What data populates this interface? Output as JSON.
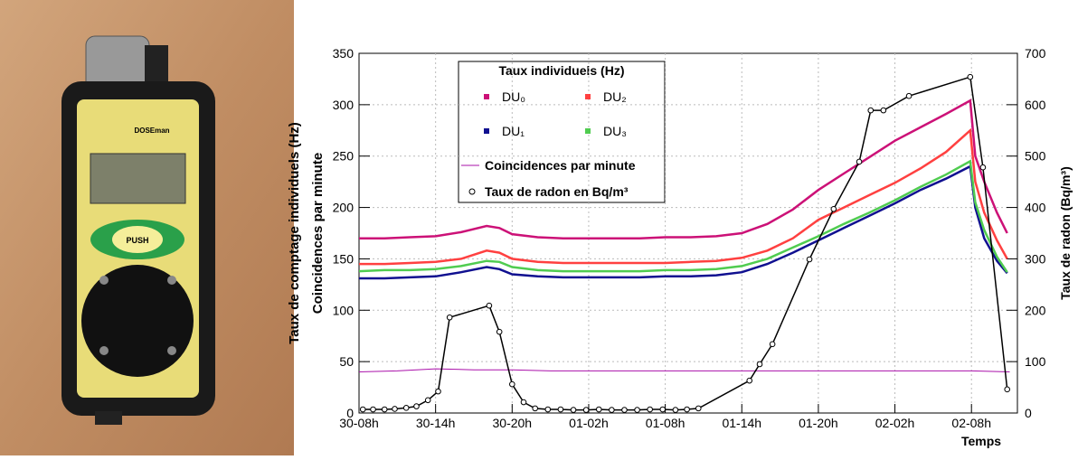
{
  "photo": {
    "brand": "DOSEman",
    "button": "PUSH"
  },
  "chart_data": {
    "type": "line",
    "legend_title": "Taux individuels (Hz)",
    "x_label": "Temps",
    "y_label": [
      "Taux de comptage individuels (Hz)",
      "Coincidences par minute"
    ],
    "y2_label": "Taux de radon (Bq/m³)",
    "xlim": [
      0,
      51.6
    ],
    "ylim": [
      0,
      350
    ],
    "y2lim": [
      0,
      700
    ],
    "xticks": [
      {
        "value": 0,
        "label": "30-08h"
      },
      {
        "value": 6,
        "label": "30-14h"
      },
      {
        "value": 12,
        "label": "30-20h"
      },
      {
        "value": 18,
        "label": "01-02h"
      },
      {
        "value": 24,
        "label": "01-08h"
      },
      {
        "value": 30,
        "label": "01-14h"
      },
      {
        "value": 36,
        "label": "01-20h"
      },
      {
        "value": 42,
        "label": "02-02h"
      },
      {
        "value": 48,
        "label": "02-08h"
      }
    ],
    "yticks": [
      0,
      50,
      100,
      150,
      200,
      250,
      300,
      350
    ],
    "y2ticks": [
      0,
      100,
      200,
      300,
      400,
      500,
      600,
      700
    ],
    "grid": true,
    "series": [
      {
        "name": "DU₀",
        "color": "#cc1177",
        "marker": "square",
        "x": [
          0,
          2,
          4,
          6,
          8,
          10,
          11,
          12,
          14,
          16,
          18,
          20,
          22,
          24,
          26,
          28,
          30,
          32,
          34,
          36,
          38,
          40,
          42,
          44,
          46,
          47.9,
          48.3,
          49,
          50,
          50.8
        ],
        "values": [
          170,
          170,
          171,
          172,
          176,
          182,
          180,
          174,
          171,
          170,
          170,
          170,
          170,
          171,
          171,
          172,
          175,
          184,
          198,
          217,
          233,
          249,
          265,
          278,
          291,
          304,
          250,
          225,
          195,
          175
        ]
      },
      {
        "name": "DU₁",
        "color": "#101090",
        "marker": "square",
        "x": [
          0,
          2,
          4,
          6,
          8,
          10,
          11,
          12,
          14,
          16,
          18,
          20,
          22,
          24,
          26,
          28,
          30,
          32,
          34,
          36,
          38,
          40,
          42,
          44,
          46,
          47.9,
          48.3,
          49,
          50,
          50.8
        ],
        "values": [
          131,
          131,
          132,
          133,
          137,
          142,
          140,
          135,
          133,
          132,
          132,
          132,
          132,
          133,
          133,
          134,
          137,
          145,
          156,
          168,
          180,
          192,
          204,
          217,
          228,
          240,
          200,
          170,
          148,
          136
        ]
      },
      {
        "name": "DU₂",
        "color": "#ff4040",
        "marker": "square",
        "x": [
          0,
          2,
          4,
          6,
          8,
          10,
          11,
          12,
          14,
          16,
          18,
          20,
          22,
          24,
          26,
          28,
          30,
          32,
          34,
          36,
          38,
          40,
          42,
          44,
          46,
          47.9,
          48.3,
          49,
          50,
          50.8
        ],
        "values": [
          145,
          145,
          146,
          147,
          150,
          158,
          156,
          150,
          147,
          146,
          146,
          146,
          146,
          146,
          147,
          148,
          151,
          158,
          170,
          188,
          200,
          212,
          224,
          238,
          254,
          275,
          225,
          195,
          168,
          150
        ]
      },
      {
        "name": "DU₃",
        "color": "#50cc50",
        "marker": "square",
        "x": [
          0,
          2,
          4,
          6,
          8,
          10,
          11,
          12,
          14,
          16,
          18,
          20,
          22,
          24,
          26,
          28,
          30,
          32,
          34,
          36,
          38,
          40,
          42,
          44,
          46,
          47.9,
          48.3,
          49,
          50,
          50.8
        ],
        "values": [
          138,
          139,
          139,
          140,
          143,
          148,
          147,
          142,
          139,
          138,
          138,
          138,
          138,
          139,
          139,
          140,
          143,
          150,
          161,
          172,
          184,
          195,
          207,
          220,
          232,
          245,
          205,
          178,
          152,
          137
        ]
      },
      {
        "name": "Coincidences par minute",
        "color": "#aa11aa",
        "marker": "none",
        "x": [
          0,
          3,
          6,
          9,
          12,
          15,
          18,
          21,
          24,
          27,
          30,
          33,
          36,
          39,
          42,
          45,
          48,
          51
        ],
        "values": [
          40,
          41,
          43,
          42,
          42,
          41,
          41,
          41,
          41,
          41,
          41,
          41,
          41,
          41,
          41,
          41,
          41,
          40
        ]
      },
      {
        "name": "Taux de radon en Bq/m³",
        "color": "#000000",
        "marker": "circle",
        "axis": "y2",
        "x": [
          0.3,
          1.1,
          2.0,
          2.8,
          3.7,
          4.5,
          5.4,
          6.2,
          7.1,
          10.2,
          11.0,
          12.0,
          12.9,
          13.8,
          14.8,
          15.8,
          16.8,
          17.8,
          18.8,
          19.8,
          20.8,
          21.8,
          22.8,
          23.8,
          24.8,
          25.7,
          26.6,
          30.6,
          31.4,
          32.4,
          35.3,
          37.2,
          39.2,
          40.1,
          41.1,
          43.1,
          47.9,
          48.9,
          50.8
        ],
        "values": [
          7,
          7,
          7,
          8,
          10,
          13,
          25,
          42,
          186,
          209,
          158,
          56,
          21,
          9,
          7,
          7,
          6,
          6,
          7,
          6,
          6,
          6,
          7,
          7,
          6,
          7,
          9,
          63,
          95,
          134,
          299,
          397,
          489,
          589,
          589,
          617,
          654,
          478,
          46
        ]
      }
    ]
  }
}
